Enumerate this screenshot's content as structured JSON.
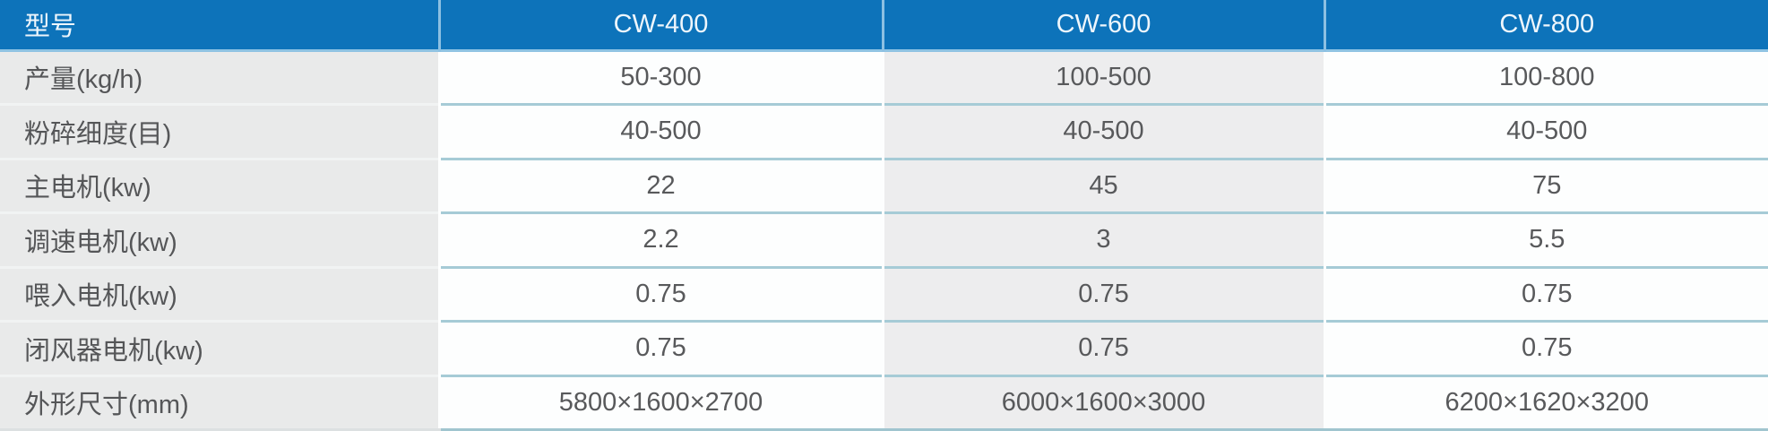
{
  "table": {
    "header": {
      "label": "型号",
      "models": [
        "CW-400",
        "CW-600",
        "CW-800"
      ]
    },
    "rows": [
      {
        "label": "产量(kg/h)",
        "values": [
          "50-300",
          "100-500",
          "100-800"
        ]
      },
      {
        "label": "粉碎细度(目)",
        "values": [
          "40-500",
          "40-500",
          "40-500"
        ]
      },
      {
        "label": "主电机(kw)",
        "values": [
          "22",
          "45",
          "75"
        ]
      },
      {
        "label": "调速电机(kw)",
        "values": [
          "2.2",
          "3",
          "5.5"
        ]
      },
      {
        "label": "喂入电机(kw)",
        "values": [
          "0.75",
          "0.75",
          "0.75"
        ]
      },
      {
        "label": "闭风器电机(kw)",
        "values": [
          "0.75",
          "0.75",
          "0.75"
        ]
      },
      {
        "label": "外形尺寸(mm)",
        "values": [
          "5800×1600×2700",
          "6000×1600×3000",
          "6200×1620×3200"
        ]
      }
    ],
    "colors": {
      "header_bg": "#0d73ba",
      "header_text": "#eef6fc",
      "label_cell_bg": "#e9eaea",
      "stripe_cell_bg": "#ededee",
      "white_cell_bg": "#fdfefe",
      "row_separator": "#a6cbd6",
      "header_separator": "#8fc3e3",
      "body_text": "#58595b"
    }
  }
}
